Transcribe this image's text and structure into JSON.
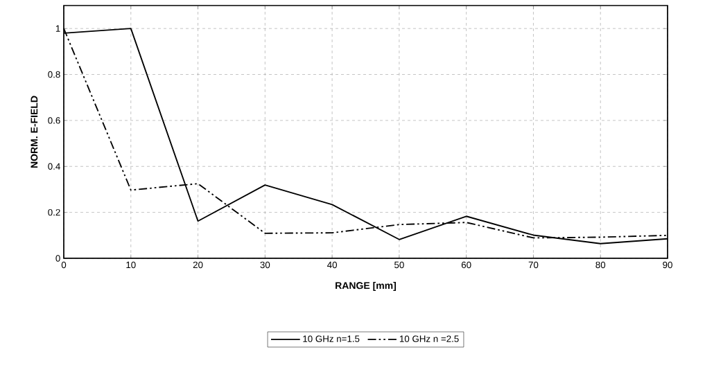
{
  "chart_data": {
    "type": "line",
    "xlabel": "RANGE [mm]",
    "ylabel": "NORM. E-FIELD",
    "x": [
      0,
      10,
      20,
      30,
      40,
      50,
      60,
      70,
      80,
      90
    ],
    "series": [
      {
        "name": "10 GHz n=1.5",
        "color": "#000000",
        "line_style": "solid",
        "values": [
          0.98,
          1.0,
          0.162,
          0.319,
          0.234,
          0.082,
          0.183,
          0.101,
          0.064,
          0.085
        ]
      },
      {
        "name": "10 GHz n =2.5",
        "color": "#000000",
        "line_style": "dashdot",
        "values": [
          1.0,
          0.297,
          0.325,
          0.109,
          0.111,
          0.147,
          0.156,
          0.089,
          0.092,
          0.1
        ]
      }
    ],
    "xlim": [
      0,
      90
    ],
    "ylim": [
      0,
      1.1
    ],
    "xticks": [
      0,
      10,
      20,
      30,
      40,
      50,
      60,
      70,
      80,
      90
    ],
    "yticks": [
      0,
      0.2,
      0.4,
      0.6,
      0.8,
      1
    ],
    "grid": true,
    "legend": "bottom",
    "marker": "none"
  }
}
